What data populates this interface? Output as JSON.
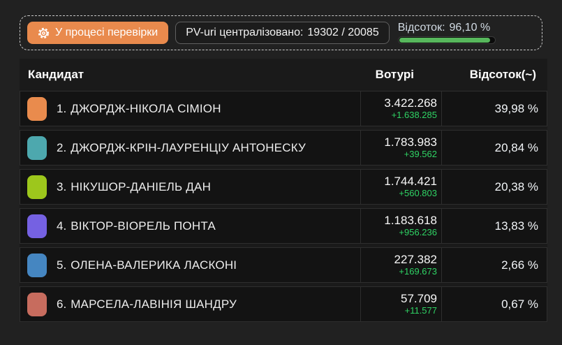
{
  "colors": {
    "accent_orange": "#e98a4d",
    "progress_green": "#57b75c",
    "delta_green": "#2fd364"
  },
  "topbar": {
    "status_button": {
      "label": "У процесі перевірки",
      "icon": "gear-icon"
    },
    "pv_counter": {
      "label": "PV-uri централізовано:",
      "value": "19302 / 20085"
    },
    "percent": {
      "label": "Відсоток:",
      "value": "96,10 %",
      "progress": 96.1
    }
  },
  "table": {
    "headers": {
      "candidate": "Кандидат",
      "votes": "Вотурі",
      "percent": "Відсоток(~)"
    },
    "rows": [
      {
        "rank": "1.",
        "name": "ДЖОРДЖ-НІКОЛА СІМІОН",
        "color": "#e98b4d",
        "votes": "3.422.268",
        "delta": "+1.638.285",
        "percent": "39,98 %"
      },
      {
        "rank": "2.",
        "name": "ДЖОРДЖ-КРІН-ЛАУРЕНЦІУ АНТОНЕСКУ",
        "color": "#4da8ae",
        "votes": "1.783.983",
        "delta": "+39.562",
        "percent": "20,84 %"
      },
      {
        "rank": "3.",
        "name": "НІКУШОР-ДАНІЕЛЬ ДАН",
        "color": "#9dc71c",
        "votes": "1.744.421",
        "delta": "+560.803",
        "percent": "20,38 %"
      },
      {
        "rank": "4.",
        "name": "ВІКТОР-ВІОРЕЛЬ ПОНТА",
        "color": "#7561e2",
        "votes": "1.183.618",
        "delta": "+956.236",
        "percent": "13,83 %"
      },
      {
        "rank": "5.",
        "name": "ОЛЕНА-ВАЛЕРИКА ЛАСКОНІ",
        "color": "#4586c1",
        "votes": "227.382",
        "delta": "+169.673",
        "percent": "2,66 %"
      },
      {
        "rank": "6.",
        "name": "МАРСЕЛА-ЛАВІНІЯ ШАНДРУ",
        "color": "#c76c5e",
        "votes": "57.709",
        "delta": "+11.577",
        "percent": "0,67 %"
      }
    ]
  }
}
